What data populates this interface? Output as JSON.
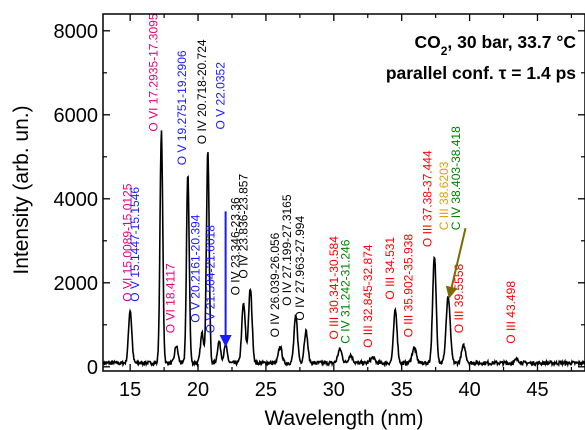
{
  "chart_data": {
    "type": "line",
    "title_line1": "CO",
    "title_sub": "2",
    "title_line1_rest": ", 30 bar, 33.7 °C",
    "title_line2": "parallel conf. τ = 1.4 ps",
    "xlabel": "Wavelength (nm)",
    "ylabel": "Intensity (arb. un.)",
    "xlim": [
      13,
      48.5
    ],
    "ylim": [
      -100,
      8400
    ],
    "xticks": [
      "15",
      "20",
      "25",
      "30",
      "35",
      "40",
      "45"
    ],
    "xtick_values": [
      15,
      20,
      25,
      30,
      35,
      40,
      45
    ],
    "yticks": [
      "0",
      "2000",
      "4000",
      "6000",
      "8000"
    ],
    "ytick_values": [
      0,
      2000,
      4000,
      6000,
      8000
    ],
    "baseline": 90,
    "peaks": [
      {
        "x": 15.0,
        "y": 1350,
        "w": 0.12
      },
      {
        "x": 17.3,
        "y": 5600,
        "w": 0.1
      },
      {
        "x": 18.4,
        "y": 500,
        "w": 0.12
      },
      {
        "x": 19.25,
        "y": 4600,
        "w": 0.1
      },
      {
        "x": 20.3,
        "y": 800,
        "w": 0.12
      },
      {
        "x": 20.72,
        "y": 5150,
        "w": 0.1
      },
      {
        "x": 21.55,
        "y": 600,
        "w": 0.12
      },
      {
        "x": 22.03,
        "y": 500,
        "w": 0.12
      },
      {
        "x": 23.35,
        "y": 1500,
        "w": 0.13
      },
      {
        "x": 23.85,
        "y": 1850,
        "w": 0.13
      },
      {
        "x": 26.05,
        "y": 480,
        "w": 0.13
      },
      {
        "x": 27.2,
        "y": 1200,
        "w": 0.13
      },
      {
        "x": 27.95,
        "y": 850,
        "w": 0.13
      },
      {
        "x": 30.45,
        "y": 420,
        "w": 0.15
      },
      {
        "x": 31.24,
        "y": 280,
        "w": 0.15
      },
      {
        "x": 32.86,
        "y": 220,
        "w": 0.15
      },
      {
        "x": 34.53,
        "y": 1350,
        "w": 0.13
      },
      {
        "x": 35.92,
        "y": 450,
        "w": 0.15
      },
      {
        "x": 37.41,
        "y": 2600,
        "w": 0.13
      },
      {
        "x": 38.42,
        "y": 1650,
        "w": 0.15
      },
      {
        "x": 39.56,
        "y": 500,
        "w": 0.15
      },
      {
        "x": 43.5,
        "y": 180,
        "w": 0.15
      }
    ],
    "annotations": [
      {
        "text": "O VI 15.0089-15.0125",
        "color": "#e6007e",
        "x": 15.1,
        "y": 1550
      },
      {
        "text": "O V 15.1447-15.1546",
        "color": "#1a1aff",
        "x": 15.65,
        "y": 1550
      },
      {
        "text": "O VI 17.2935-17.3095",
        "color": "#e6007e",
        "x": 17.0,
        "y": 5600
      },
      {
        "text": "O VI 18.4117",
        "color": "#e6007e",
        "x": 18.25,
        "y": 800
      },
      {
        "text": "O V 19.2751-19.2906",
        "color": "#1a1aff",
        "x": 19.1,
        "y": 4800
      },
      {
        "text": "O V 20.2161-20.394",
        "color": "#1a1aff",
        "x": 20.1,
        "y": 1050
      },
      {
        "text": "O IV 20.718-20.724",
        "color": "#000000",
        "x": 20.6,
        "y": 5300
      },
      {
        "text": "O V 21.504-21.6018",
        "color": "#1a1aff",
        "x": 21.2,
        "y": 800
      },
      {
        "text": "O V 22.0352",
        "color": "#1a1aff",
        "x": 21.95,
        "y": 5650
      },
      {
        "text": "O IV 23.346-23.36",
        "color": "#000000",
        "x": 23.05,
        "y": 1700
      },
      {
        "text": "O IV 23.836-23.857",
        "color": "#000000",
        "x": 23.65,
        "y": 2100
      },
      {
        "text": "O IV 26.039-26.056",
        "color": "#000000",
        "x": 25.95,
        "y": 700
      },
      {
        "text": "O IV 27.199-27.3165",
        "color": "#000000",
        "x": 26.85,
        "y": 1450
      },
      {
        "text": "O IV 27.963-27.994",
        "color": "#000000",
        "x": 27.8,
        "y": 1100
      },
      {
        "text": "O III 30.341-30.584",
        "color": "#ff0000",
        "x": 30.3,
        "y": 650
      },
      {
        "text": "C IV 31.242-31.246",
        "color": "#008000",
        "x": 31.15,
        "y": 550
      },
      {
        "text": "O III 32.845-32.874",
        "color": "#ff0000",
        "x": 32.8,
        "y": 450
      },
      {
        "text": "O III 34.531",
        "color": "#ff0000",
        "x": 34.45,
        "y": 1600
      },
      {
        "text": "O III 35.902-35.938",
        "color": "#ff0000",
        "x": 35.8,
        "y": 700
      },
      {
        "text": "O III 37.38-37.444",
        "color": "#ff0000",
        "x": 37.2,
        "y": 2850
      },
      {
        "text": "C III 38.6203",
        "color": "#e0a000",
        "x": 38.4,
        "y": 3250
      },
      {
        "text": "C IV 38.403-38.418",
        "color": "#008000",
        "x": 39.3,
        "y": 3250
      },
      {
        "text": "O III 39.5558",
        "color": "#ff0000",
        "x": 39.5,
        "y": 800
      },
      {
        "text": "O III 43.498",
        "color": "#ff0000",
        "x": 43.35,
        "y": 550
      }
    ],
    "arrows": [
      {
        "color": "#1a1aff",
        "from": [
          22.03,
          3700
        ],
        "to": [
          22.03,
          500
        ]
      },
      {
        "color": "#7a6a00",
        "from": [
          39.7,
          3300
        ],
        "to": [
          38.5,
          1650
        ]
      }
    ],
    "grid": false,
    "legend": "none"
  }
}
